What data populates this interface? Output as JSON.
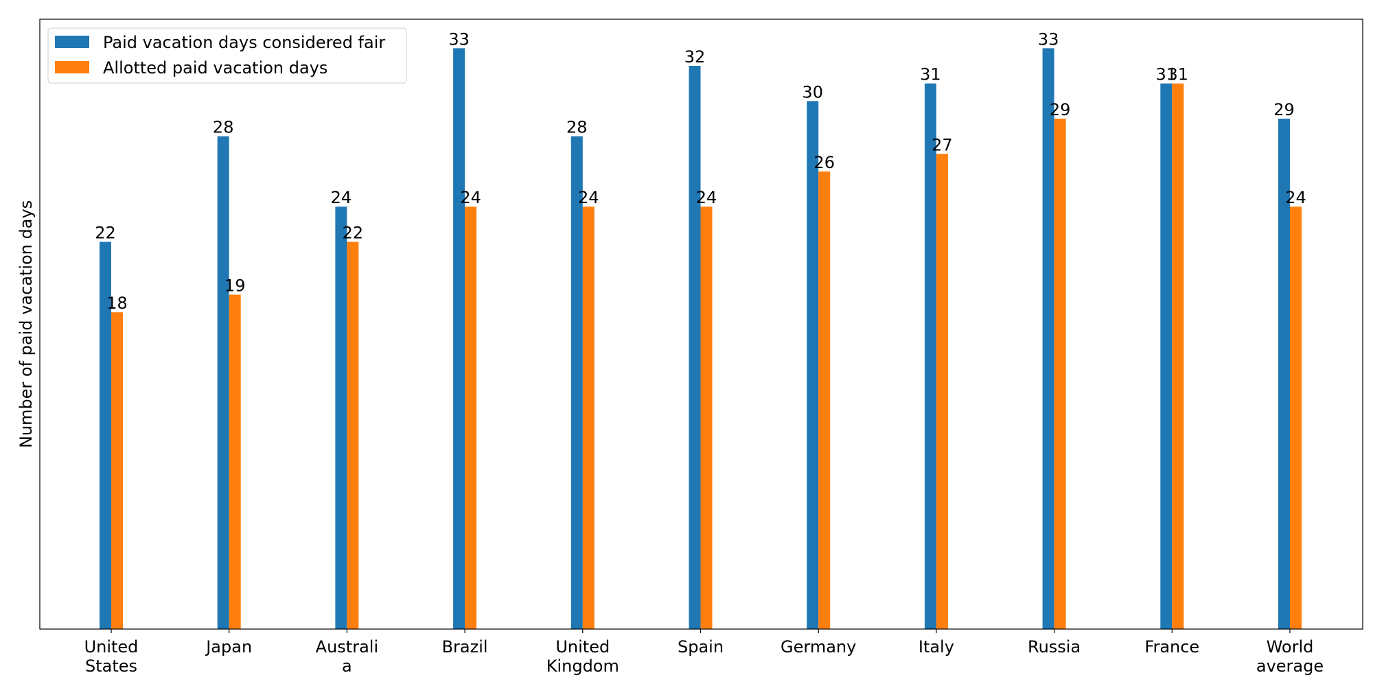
{
  "chart_data": {
    "type": "bar",
    "title": "",
    "xlabel": "",
    "ylabel": "Number of paid vacation days",
    "categories": [
      [
        "United",
        "States"
      ],
      [
        "Japan"
      ],
      [
        "Australi",
        "a"
      ],
      [
        "Brazil"
      ],
      [
        "United",
        "Kingdom"
      ],
      [
        "Spain"
      ],
      [
        "Germany"
      ],
      [
        "Italy"
      ],
      [
        "Russia"
      ],
      [
        "France"
      ],
      [
        "World",
        "average"
      ]
    ],
    "series": [
      {
        "name": "Paid vacation days considered fair",
        "color": "#1f77b4",
        "values": [
          22,
          28,
          24,
          33,
          28,
          32,
          30,
          31,
          33,
          31,
          29
        ]
      },
      {
        "name": "Allotted paid vacation days",
        "color": "#ff7f0e",
        "values": [
          18,
          19,
          22,
          24,
          24,
          24,
          26,
          27,
          29,
          31,
          24
        ]
      }
    ],
    "ylim": [
      0,
      34.65
    ],
    "y_ticks_visible": false,
    "grid": false,
    "legend_position": "top-left"
  }
}
